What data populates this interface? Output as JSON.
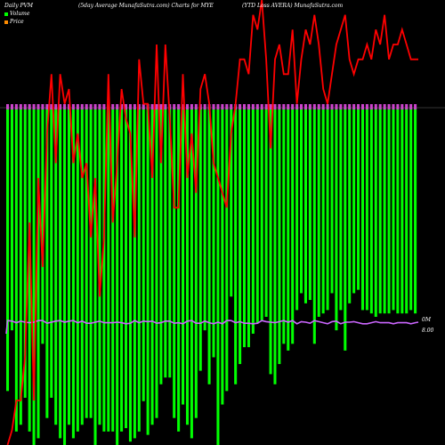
{
  "header": {
    "left": "Daily PVM",
    "middle": "(5day Average MunafaSutra.com) Charts for MYE",
    "right": "(YTD Loss AVERA) MunafaSutra.com"
  },
  "legend": {
    "volume": "Volume",
    "price": "Price"
  },
  "right_axis": {
    "volume_label": "0M",
    "price_label": "8.00"
  },
  "colors": {
    "background": "#000000",
    "volume_up": "#00ff00",
    "volume_top": "#cc44cc",
    "price_line": "#ff0000",
    "avg_line": "#cc66ff"
  },
  "chart_data": {
    "type": "bar",
    "series": [
      {
        "name": "Volume",
        "values": [
          420,
          330,
          480,
          470,
          430,
          480,
          500,
          490,
          350,
          460,
          430,
          470,
          490,
          500,
          470,
          490,
          480,
          470,
          460,
          460,
          500,
          470,
          480,
          480,
          480,
          500,
          480,
          475,
          495,
          490,
          480,
          435,
          485,
          470,
          460,
          410,
          400,
          400,
          460,
          480,
          440,
          470,
          490,
          460,
          390,
          330,
          410,
          370,
          500,
          440,
          420,
          280,
          410,
          380,
          355,
          355,
          335,
          320,
          315,
          310,
          395,
          410,
          380,
          350,
          360,
          350,
          300,
          275,
          290,
          285,
          350,
          310,
          305,
          300,
          275,
          330,
          300,
          360,
          290,
          275,
          270,
          300,
          300,
          305,
          310,
          305,
          305,
          305,
          300,
          305,
          305,
          305,
          300,
          305
        ]
      },
      {
        "name": "Price",
        "values": [
          8.0,
          8.1,
          8.3,
          8.3,
          8.6,
          9.5,
          8.3,
          9.8,
          9.2,
          10.1,
          10.5,
          9.9,
          10.5,
          10.3,
          10.4,
          9.9,
          10.1,
          9.8,
          9.9,
          9.4,
          9.8,
          9.0,
          9.4,
          10.5,
          9.5,
          9.9,
          10.4,
          10.2,
          10.1,
          9.4,
          10.6,
          10.3,
          10.3,
          9.8,
          10.7,
          9.9,
          10.7,
          10.2,
          9.6,
          9.6,
          10.5,
          9.8,
          10.1,
          9.7,
          10.4,
          10.5,
          10.3,
          9.9,
          9.8,
          9.7,
          9.6,
          10.1,
          10.3,
          10.6,
          10.6,
          10.5,
          10.9,
          10.8,
          11.1,
          10.6,
          10.0,
          10.6,
          10.7,
          10.5,
          10.5,
          10.8,
          10.3,
          10.6,
          10.8,
          10.7,
          10.9,
          10.7,
          10.4,
          10.3,
          10.5,
          10.7,
          10.8,
          10.9,
          10.6,
          10.5,
          10.6,
          10.6,
          10.7,
          10.6,
          10.8,
          10.7,
          10.9,
          10.6,
          10.7,
          10.7,
          10.8,
          10.7,
          10.6,
          10.6
        ]
      }
    ]
  }
}
